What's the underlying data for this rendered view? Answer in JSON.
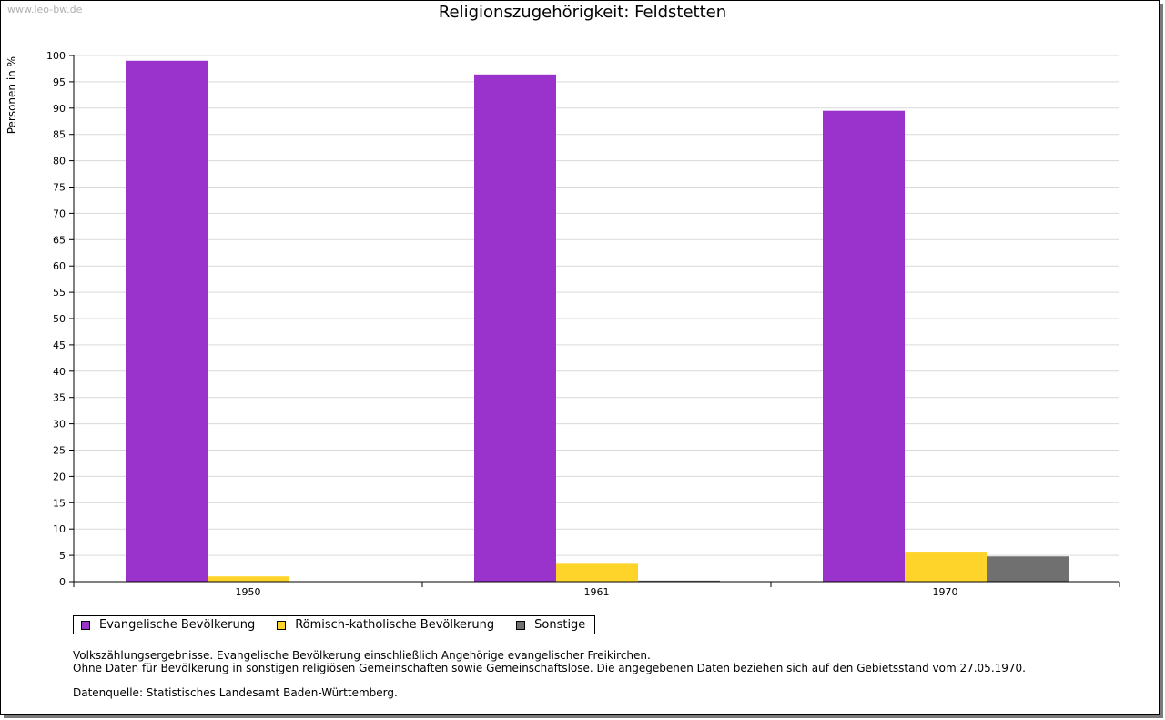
{
  "watermark": "www.leo-bw.de",
  "title": "Religionszugehörigkeit: Feldstetten",
  "notes": {
    "line1": "Volkszählungsergebnisse. Evangelische Bevölkerung einschließlich Angehörige evangelischer Freikirchen.",
    "line2": "Ohne Daten für Bevölkerung in sonstigen religiösen Gemeinschaften sowie Gemeinschaftslose. Die angegebenen Daten beziehen sich auf den Gebietsstand vom 27.05.1970.",
    "source": "Datenquelle: Statistisches Landesamt Baden-Württemberg."
  },
  "chart_data": {
    "type": "bar",
    "title": "Religionszugehörigkeit: Feldstetten",
    "xlabel": "",
    "ylabel": "Personen in %",
    "ylim": [
      0,
      100
    ],
    "ytick_step": 5,
    "grid": true,
    "legend_position": "bottom-left",
    "categories": [
      "1950",
      "1961",
      "1970"
    ],
    "series": [
      {
        "name": "Evangelische Bevölkerung",
        "color": "#9933cc",
        "values": [
          99.0,
          96.4,
          89.5
        ]
      },
      {
        "name": "Römisch-katholische Bevölkerung",
        "color": "#ffd42a",
        "values": [
          1.0,
          3.4,
          5.7
        ]
      },
      {
        "name": "Sonstige",
        "color": "#707070",
        "values": [
          0.0,
          0.2,
          4.8
        ]
      }
    ]
  }
}
